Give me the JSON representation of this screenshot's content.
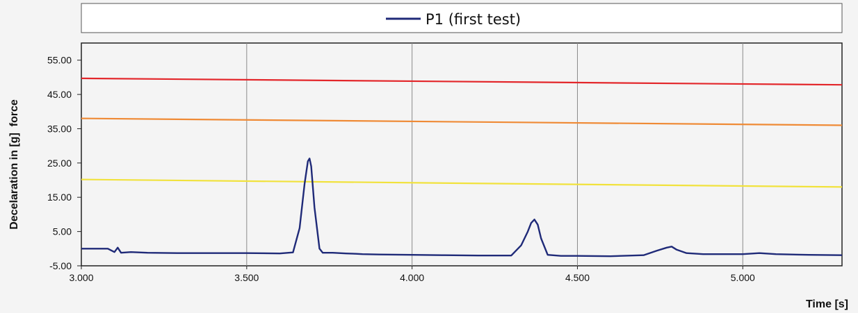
{
  "chart_data": {
    "type": "line",
    "xlabel": "Time [s]",
    "ylabel": "Decelaration in [g]  force",
    "xlim": [
      3.0,
      5.3
    ],
    "ylim": [
      -5.0,
      60.0
    ],
    "xticks": [
      "3.000",
      "3.500",
      "4.000",
      "4.500",
      "5.000"
    ],
    "yticks": [
      "-5.00",
      "5.00",
      "15.00",
      "25.00",
      "35.00",
      "45.00",
      "55.00"
    ],
    "grid": true,
    "legend_position": "top",
    "series": [
      {
        "name": "P1 (first test)",
        "color": "#1f2a78",
        "x": [
          3.0,
          3.08,
          3.1,
          3.11,
          3.12,
          3.15,
          3.2,
          3.3,
          3.4,
          3.5,
          3.6,
          3.64,
          3.66,
          3.675,
          3.685,
          3.69,
          3.695,
          3.705,
          3.72,
          3.73,
          3.76,
          3.8,
          3.83,
          3.85,
          3.9,
          4.0,
          4.1,
          4.2,
          4.3,
          4.33,
          4.35,
          4.36,
          4.37,
          4.38,
          4.39,
          4.41,
          4.45,
          4.5,
          4.6,
          4.7,
          4.74,
          4.77,
          4.785,
          4.8,
          4.83,
          4.88,
          4.95,
          5.0,
          5.05,
          5.1,
          5.2,
          5.3
        ],
        "y": [
          0.0,
          0.0,
          -1.0,
          0.3,
          -1.2,
          -1.0,
          -1.2,
          -1.3,
          -1.3,
          -1.3,
          -1.4,
          -1.1,
          6.0,
          19.0,
          25.5,
          26.3,
          24.0,
          12.0,
          0.0,
          -1.2,
          -1.2,
          -1.4,
          -1.5,
          -1.6,
          -1.7,
          -1.8,
          -1.9,
          -2.0,
          -2.0,
          1.0,
          5.0,
          7.5,
          8.5,
          7.0,
          3.0,
          -1.8,
          -2.1,
          -2.1,
          -2.2,
          -1.9,
          -0.6,
          0.3,
          0.6,
          -0.3,
          -1.3,
          -1.6,
          -1.6,
          -1.6,
          -1.3,
          -1.6,
          -1.8,
          -1.9
        ]
      },
      {
        "color": "#e3262a",
        "x": [
          3.0,
          5.3
        ],
        "y": [
          49.7,
          47.8
        ]
      },
      {
        "color": "#ef8a35",
        "x": [
          3.0,
          5.3
        ],
        "y": [
          38.0,
          36.0
        ]
      },
      {
        "color": "#f1e23c",
        "x": [
          3.0,
          5.3
        ],
        "y": [
          20.2,
          18.0
        ]
      }
    ]
  }
}
